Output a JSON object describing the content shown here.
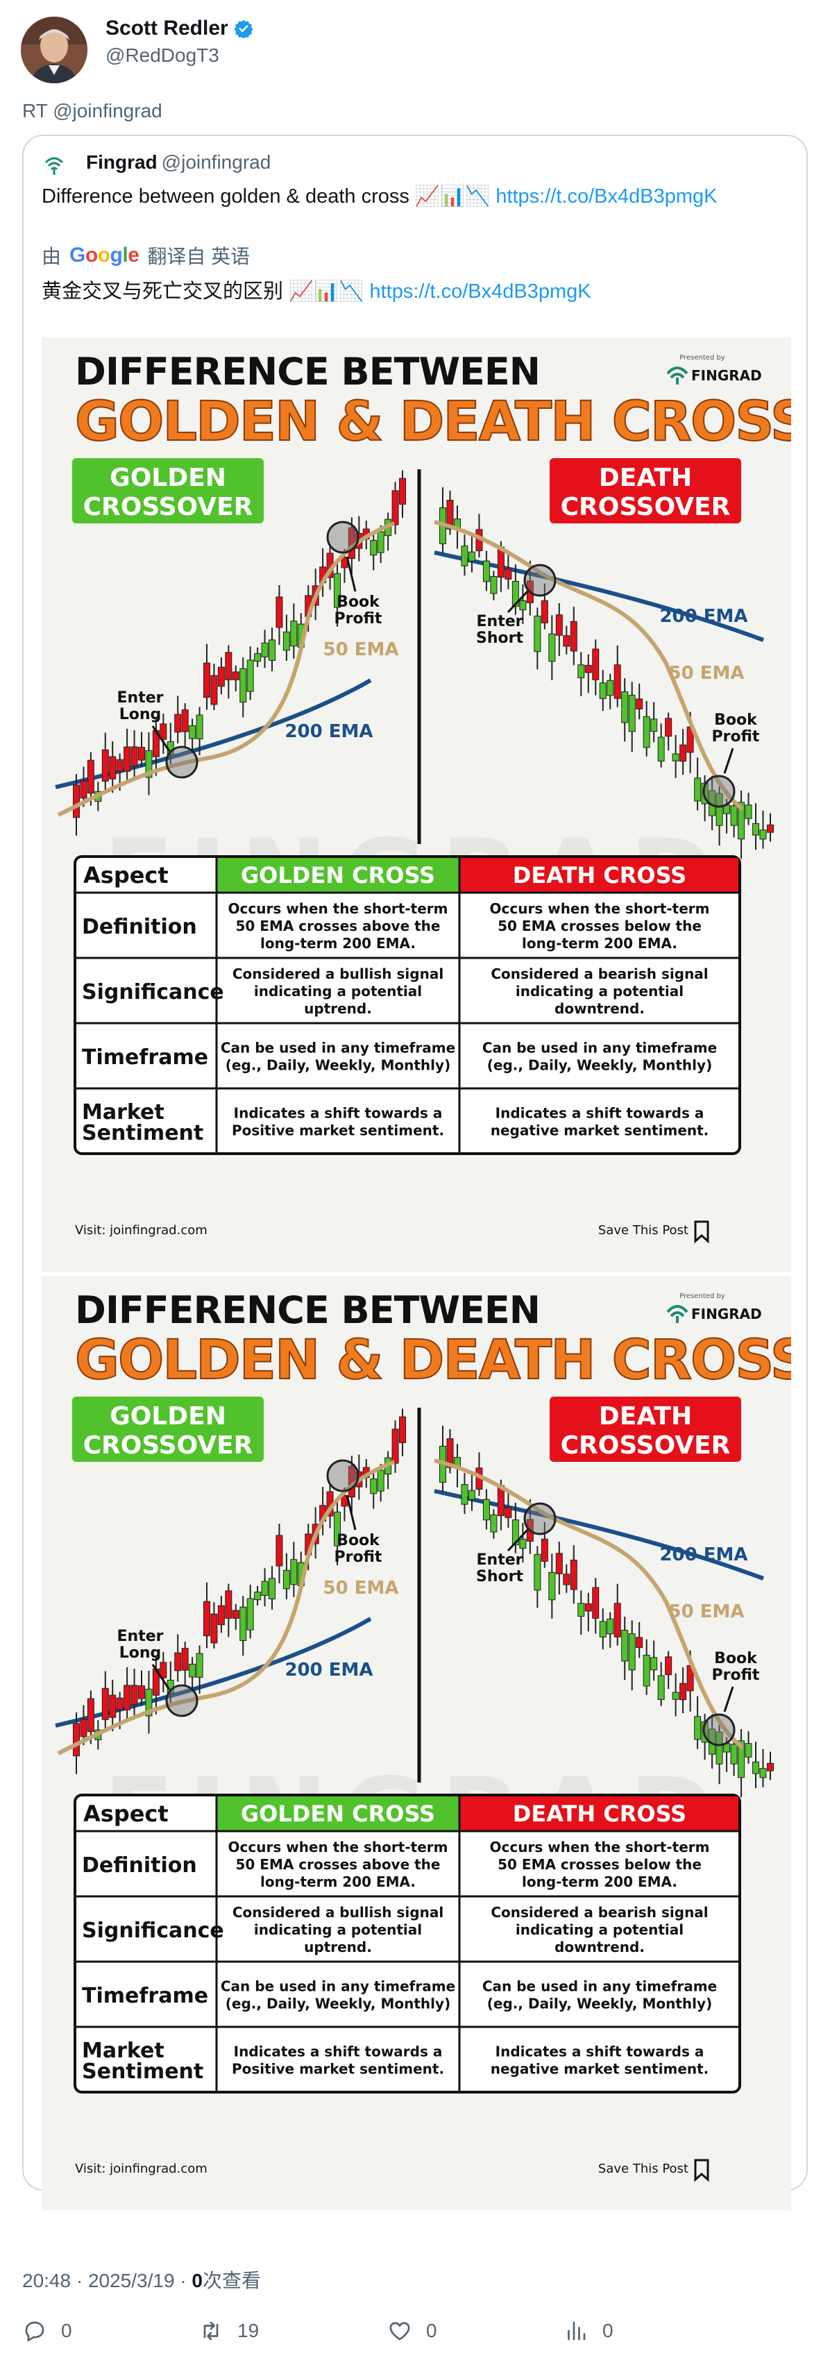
{
  "post": {
    "author_name": "Scott Redler",
    "author_handle": "@RedDogT3",
    "retweet_text": "RT @joinfingrad",
    "timestamp": "20:48 · 2025/3/19 · ",
    "views_count": "0",
    "views_label": "次查看"
  },
  "quote": {
    "name": "Fingrad",
    "handle": "@joinfingrad",
    "text": "Difference between golden & death cross 📈📊📉 ",
    "link": "https://t.co/Bx4dB3pmgK",
    "translated_by_prefix": "由",
    "translated_by_suffix": "翻译自 英语",
    "translated_text": "黄金交叉与死亡交叉的区别 📈📊📉 ",
    "translated_link": "https://t.co/Bx4dB3pmgK"
  },
  "infographic": {
    "title_line1": "DIFFERENCE BETWEEN",
    "title_line2": "GOLDEN & DEATH CROSS",
    "presented_by": "Presented by",
    "brand": "FINGRAD",
    "golden_label_1": "GOLDEN",
    "golden_label_2": "CROSSOVER",
    "death_label_1": "DEATH",
    "death_label_2": "CROSSOVER",
    "enter_long_1": "Enter",
    "enter_long_2": "Long",
    "book_profit_1": "Book",
    "book_profit_2": "Profit",
    "enter_short_1": "Enter",
    "enter_short_2": "Short",
    "ema_50": "50 EMA",
    "ema_200": "200 EMA",
    "watermark": "FINGRAD",
    "table": {
      "headers": [
        "Aspect",
        "GOLDEN CROSS",
        "DEATH CROSS"
      ],
      "rows": [
        {
          "aspect": [
            "Definition"
          ],
          "golden": [
            "Occurs when the short-term",
            "50 EMA crosses above the",
            "long-term 200 EMA."
          ],
          "death": [
            "Occurs when the short-term",
            "50 EMA crosses below the",
            "long-term 200 EMA."
          ]
        },
        {
          "aspect": [
            "Significance"
          ],
          "golden": [
            "Considered a bullish signal",
            "indicating a potential",
            "uptrend."
          ],
          "death": [
            "Considered a bearish signal",
            "indicating a potential",
            "downtrend."
          ]
        },
        {
          "aspect": [
            "Timeframe"
          ],
          "golden": [
            "Can be used in any timeframe",
            "(eg., Daily, Weekly, Monthly)"
          ],
          "death": [
            "Can be used in any timeframe",
            "(eg., Daily, Weekly, Monthly)"
          ]
        },
        {
          "aspect": [
            "Market",
            "Sentiment"
          ],
          "golden": [
            "Indicates a shift towards a",
            "Positive market sentiment."
          ],
          "death": [
            "Indicates a shift towards a",
            "negative market sentiment."
          ]
        }
      ]
    },
    "visit": "Visit: joinfingrad.com",
    "save": "Save This Post"
  },
  "actions": {
    "reply_count": "0",
    "retweet_count": "19",
    "like_count": "0",
    "views_count": "0"
  },
  "colors": {
    "link": "#1d9bf0",
    "muted": "#536471",
    "orange": "#f07b1e",
    "green": "#52c22c",
    "red": "#e5101a",
    "ema200": "#1a4f8a",
    "ema50": "#c5a56f"
  }
}
